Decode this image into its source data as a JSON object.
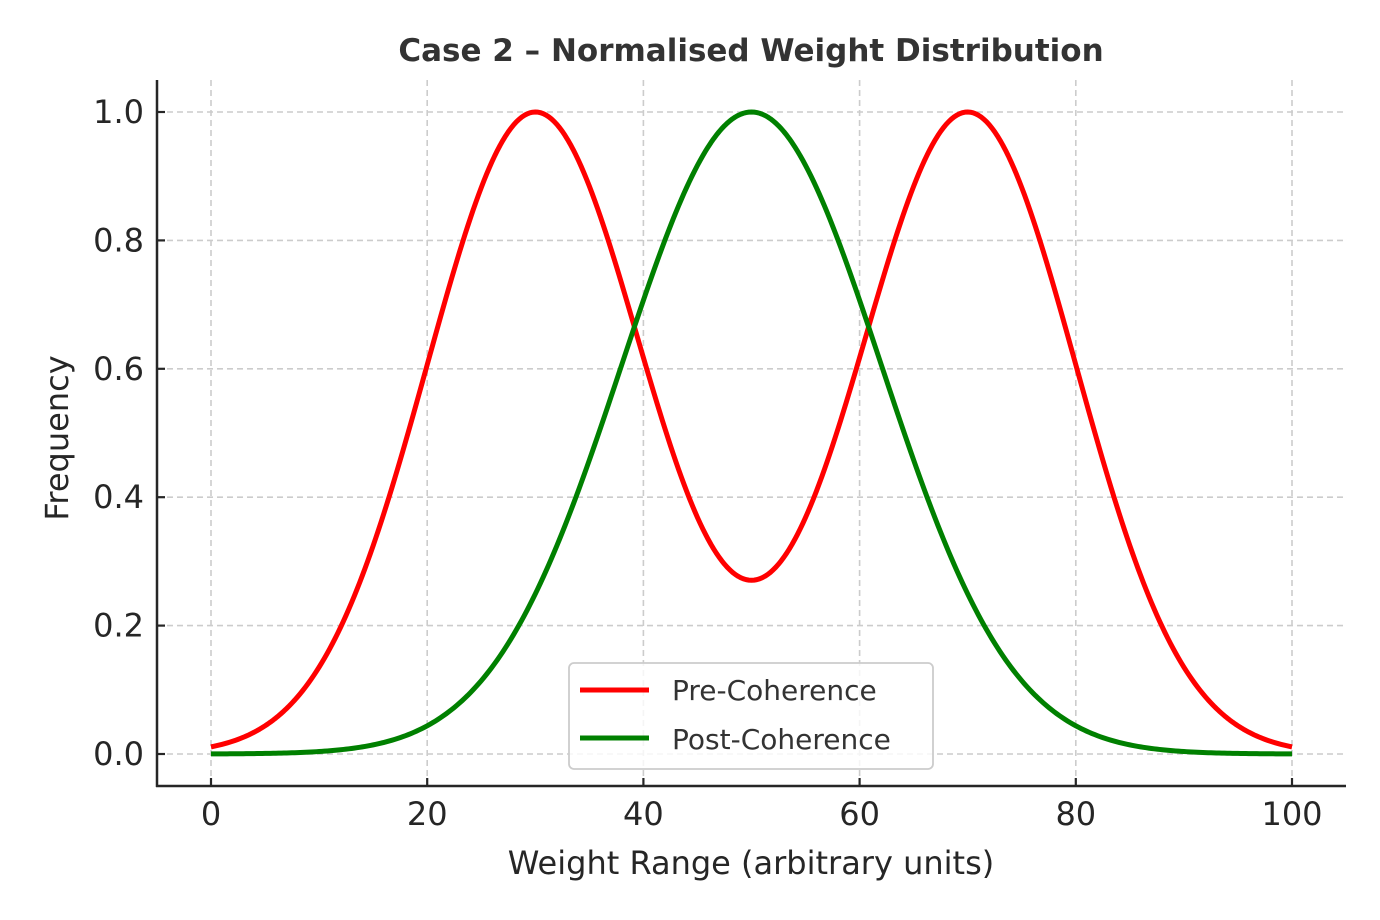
{
  "chart_data": {
    "type": "line",
    "title": "Case 2 – Normalised Weight Distribution",
    "xlabel": "Weight Range (arbitrary units)",
    "ylabel": "Frequency",
    "xlim": [
      0,
      100
    ],
    "ylim": [
      0,
      1.0
    ],
    "xticks": [
      0,
      20,
      40,
      60,
      80,
      100
    ],
    "xtick_labels": [
      "0",
      "20",
      "40",
      "60",
      "80",
      "100"
    ],
    "yticks": [
      0.0,
      0.2,
      0.4,
      0.6,
      0.8,
      1.0
    ],
    "ytick_labels": [
      "0.0",
      "0.2",
      "0.4",
      "0.6",
      "0.8",
      "1.0"
    ],
    "grid": true,
    "legend_position": "bottom-center",
    "series": [
      {
        "name": "Pre-Coherence",
        "color": "#ff0000",
        "description": "Normalised sum of two Gaussians",
        "components": [
          {
            "mean": 30,
            "sigma": 10
          },
          {
            "mean": 70,
            "sigma": 10
          }
        ],
        "key_points": [
          {
            "x": 0,
            "y": 0.01
          },
          {
            "x": 10,
            "y": 0.14
          },
          {
            "x": 20,
            "y": 0.61
          },
          {
            "x": 30,
            "y": 1.0
          },
          {
            "x": 40,
            "y": 0.62
          },
          {
            "x": 50,
            "y": 0.27
          },
          {
            "x": 60,
            "y": 0.62
          },
          {
            "x": 70,
            "y": 1.0
          },
          {
            "x": 80,
            "y": 0.61
          },
          {
            "x": 90,
            "y": 0.14
          },
          {
            "x": 100,
            "y": 0.01
          }
        ]
      },
      {
        "name": "Post-Coherence",
        "color": "#008000",
        "description": "Single normalised Gaussian",
        "components": [
          {
            "mean": 50,
            "sigma": 12
          }
        ],
        "key_points": [
          {
            "x": 0,
            "y": 0.0
          },
          {
            "x": 10,
            "y": 0.004
          },
          {
            "x": 20,
            "y": 0.04
          },
          {
            "x": 30,
            "y": 0.25
          },
          {
            "x": 40,
            "y": 0.71
          },
          {
            "x": 50,
            "y": 1.0
          },
          {
            "x": 60,
            "y": 0.71
          },
          {
            "x": 70,
            "y": 0.25
          },
          {
            "x": 80,
            "y": 0.04
          },
          {
            "x": 90,
            "y": 0.004
          },
          {
            "x": 100,
            "y": 0.0
          }
        ]
      }
    ]
  }
}
